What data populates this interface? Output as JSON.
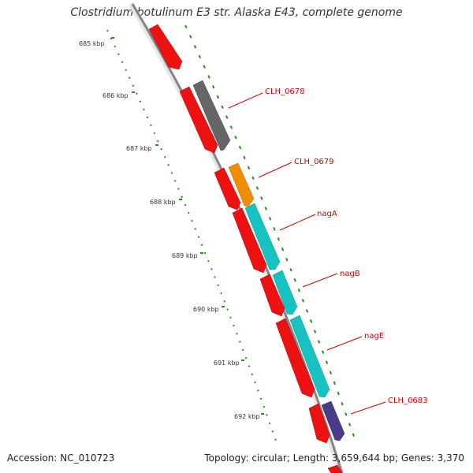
{
  "title": "Clostridium botulinum E3 str. Alaska E43, complete genome",
  "accession": "Accession: NC_010723",
  "topology": "Topology: circular; Length: 3,659,644 bp; Genes: 3,370",
  "kbp_labels": [
    "685 kbp",
    "686 kbp",
    "687 kbp",
    "688 kbp",
    "689 kbp",
    "690 kbp",
    "691 kbp",
    "692 kbp"
  ],
  "gene_labels": [
    "CLH_0678",
    "CLH_0679",
    "nagA",
    "nagB",
    "nagE",
    "CLH_0683"
  ],
  "colors": {
    "backbone": "#8a8a8a",
    "tick": "#2e8b22",
    "gene_red": "#ee1111",
    "gene_gray": "#666666",
    "gene_orange": "#f08c00",
    "gene_cyan": "#17c2c2",
    "gene_purple": "#4a3a8a",
    "label": "#cc0000"
  }
}
